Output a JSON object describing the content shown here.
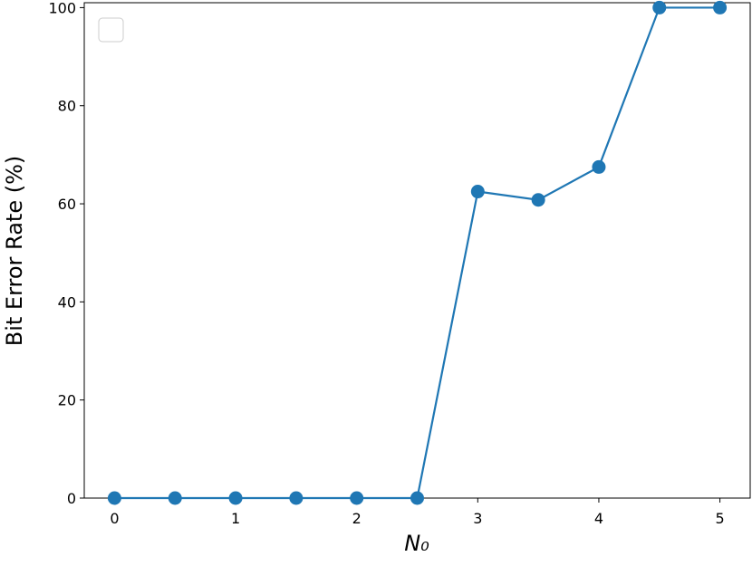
{
  "chart_data": {
    "type": "line",
    "x_label": "N₀",
    "y_label": "Bit Error Rate (%)",
    "x": [
      0,
      0.5,
      1,
      1.5,
      2,
      2.5,
      3,
      3.5,
      4,
      4.5,
      5
    ],
    "series": [
      {
        "color": "#1f77b4",
        "values": [
          0,
          0,
          0,
          0,
          0,
          0,
          62.5,
          60.8,
          67.5,
          100,
          100
        ]
      }
    ],
    "xlim": [
      -0.25,
      5.25
    ],
    "ylim": [
      0,
      101
    ],
    "xticks": [
      0,
      1,
      2,
      3,
      4,
      5
    ],
    "yticks": [
      0,
      20,
      40,
      60,
      80,
      100
    ],
    "grid": false
  }
}
